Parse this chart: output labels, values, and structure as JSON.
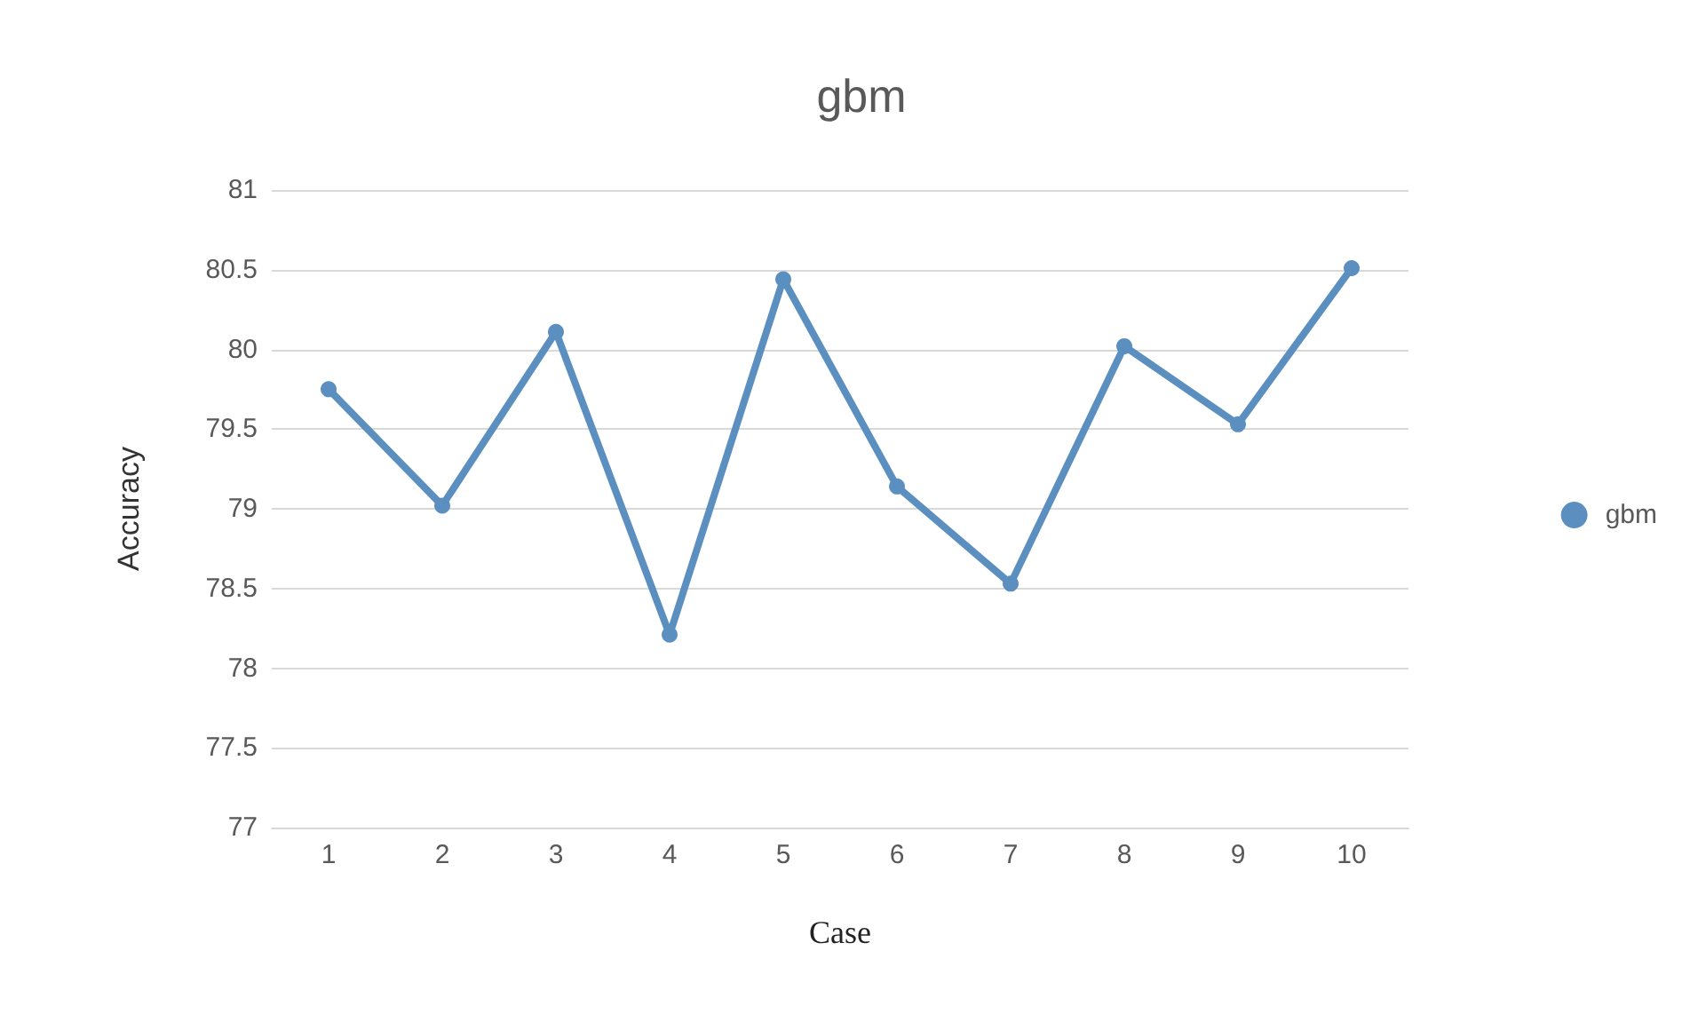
{
  "chart_data": {
    "type": "line",
    "title": "gbm",
    "xlabel": "Case",
    "ylabel": "Accuracy",
    "categories": [
      "1",
      "2",
      "3",
      "4",
      "5",
      "6",
      "7",
      "8",
      "9",
      "10"
    ],
    "series": [
      {
        "name": "gbm",
        "color": "#5b8fc0",
        "values": [
          79.75,
          79.02,
          80.11,
          78.21,
          80.44,
          79.14,
          78.53,
          80.02,
          79.53,
          80.51
        ]
      }
    ],
    "ylim": [
      77,
      81
    ],
    "yticks": [
      77,
      77.5,
      78,
      78.5,
      79,
      79.5,
      80,
      80.5,
      81
    ],
    "grid": "y",
    "legend": "right",
    "marker": "circle",
    "line_style": "solid"
  }
}
